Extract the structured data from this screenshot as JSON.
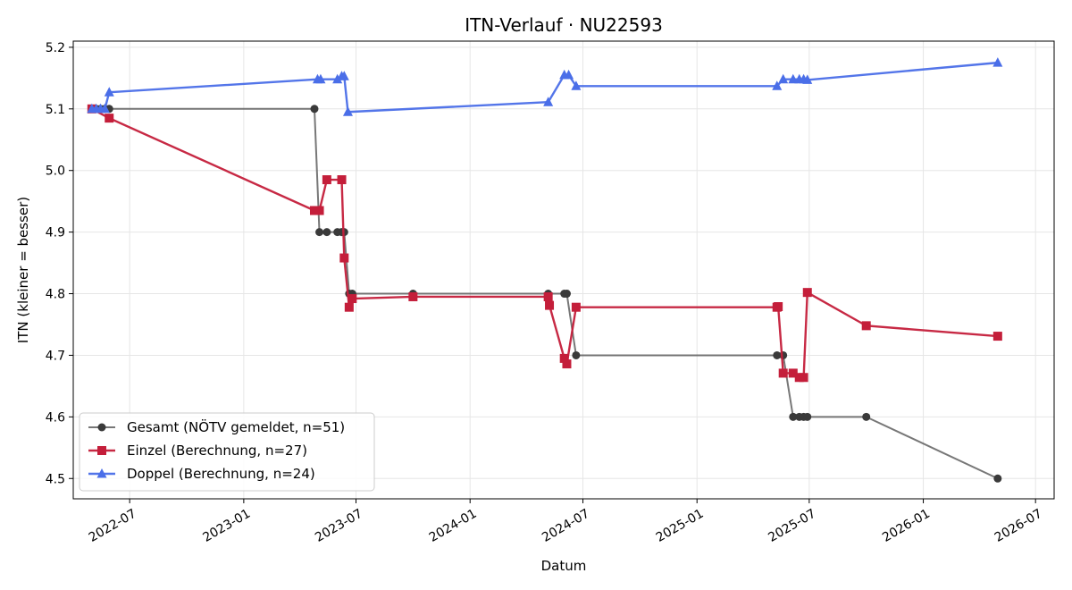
{
  "chart_data": {
    "type": "line",
    "title": "ITN-Verlauf · NU22593",
    "xlabel": "Datum",
    "ylabel": "ITN  (kleiner = besser)",
    "xlim": [
      "2022-04-01",
      "2026-07-31"
    ],
    "ylim": [
      4.467,
      5.21
    ],
    "y_ticks": [
      4.5,
      4.6,
      4.7,
      4.8,
      4.9,
      5.0,
      5.1,
      5.2
    ],
    "x_ticks": [
      "2022-07",
      "2023-01",
      "2023-07",
      "2024-01",
      "2024-07",
      "2025-01",
      "2025-07",
      "2026-01",
      "2026-07"
    ],
    "grid": true,
    "legend_position": "lower left",
    "series": [
      {
        "name": "Gesamt (NÖTV gemeldet, n=51)",
        "color": "#555555",
        "marker": "circle",
        "x": [
          "2022-05-01",
          "2022-05-08",
          "2022-05-15",
          "2022-05-22",
          "2022-05-29",
          "2023-04-25",
          "2023-05-03",
          "2023-05-15",
          "2023-06-01",
          "2023-06-08",
          "2023-06-12",
          "2023-06-20",
          "2023-06-25",
          "2023-10-01",
          "2024-05-06",
          "2024-06-01",
          "2024-06-05",
          "2024-06-20",
          "2025-05-10",
          "2025-05-20",
          "2025-06-05",
          "2025-06-15",
          "2025-06-22",
          "2025-06-28",
          "2025-10-01",
          "2026-05-01"
        ],
        "y": [
          5.1,
          5.1,
          5.1,
          5.1,
          5.1,
          5.1,
          4.9,
          4.9,
          4.9,
          4.9,
          4.9,
          4.8,
          4.8,
          4.8,
          4.8,
          4.8,
          4.8,
          4.7,
          4.7,
          4.7,
          4.6,
          4.6,
          4.6,
          4.6,
          4.6,
          4.5
        ]
      },
      {
        "name": "Einzel (Berechnung, n=27)",
        "color": "#c41e3a",
        "marker": "square",
        "x": [
          "2022-05-01",
          "2022-05-29",
          "2023-04-25",
          "2023-05-03",
          "2023-05-15",
          "2023-06-08",
          "2023-06-12",
          "2023-06-20",
          "2023-06-25",
          "2023-10-01",
          "2024-05-06",
          "2024-05-08",
          "2024-06-01",
          "2024-06-05",
          "2024-06-20",
          "2025-05-10",
          "2025-05-12",
          "2025-05-20",
          "2025-06-05",
          "2025-06-15",
          "2025-06-22",
          "2025-06-28",
          "2025-10-01",
          "2026-05-01"
        ],
        "y": [
          5.1,
          5.085,
          4.935,
          4.935,
          4.985,
          4.985,
          4.858,
          4.778,
          4.792,
          4.795,
          4.795,
          4.781,
          4.695,
          4.686,
          4.778,
          4.778,
          4.779,
          4.671,
          4.671,
          4.664,
          4.664,
          4.802,
          4.748,
          4.731
        ]
      },
      {
        "name": "Doppel (Berechnung, n=24)",
        "color": "#4a6ee8",
        "marker": "triangle",
        "x": [
          "2022-05-01",
          "2022-05-08",
          "2022-05-15",
          "2022-05-22",
          "2022-05-29",
          "2023-04-30",
          "2023-05-05",
          "2023-06-01",
          "2023-06-08",
          "2023-06-12",
          "2023-06-18",
          "2024-05-06",
          "2024-06-01",
          "2024-06-08",
          "2024-06-20",
          "2025-05-10",
          "2025-05-20",
          "2025-06-05",
          "2025-06-15",
          "2025-06-22",
          "2025-06-28",
          "2026-05-01"
        ],
        "y": [
          5.1,
          5.1,
          5.1,
          5.1,
          5.127,
          5.148,
          5.148,
          5.148,
          5.153,
          5.153,
          5.095,
          5.111,
          5.155,
          5.155,
          5.137,
          5.137,
          5.148,
          5.148,
          5.148,
          5.148,
          5.147,
          5.175
        ]
      }
    ]
  }
}
